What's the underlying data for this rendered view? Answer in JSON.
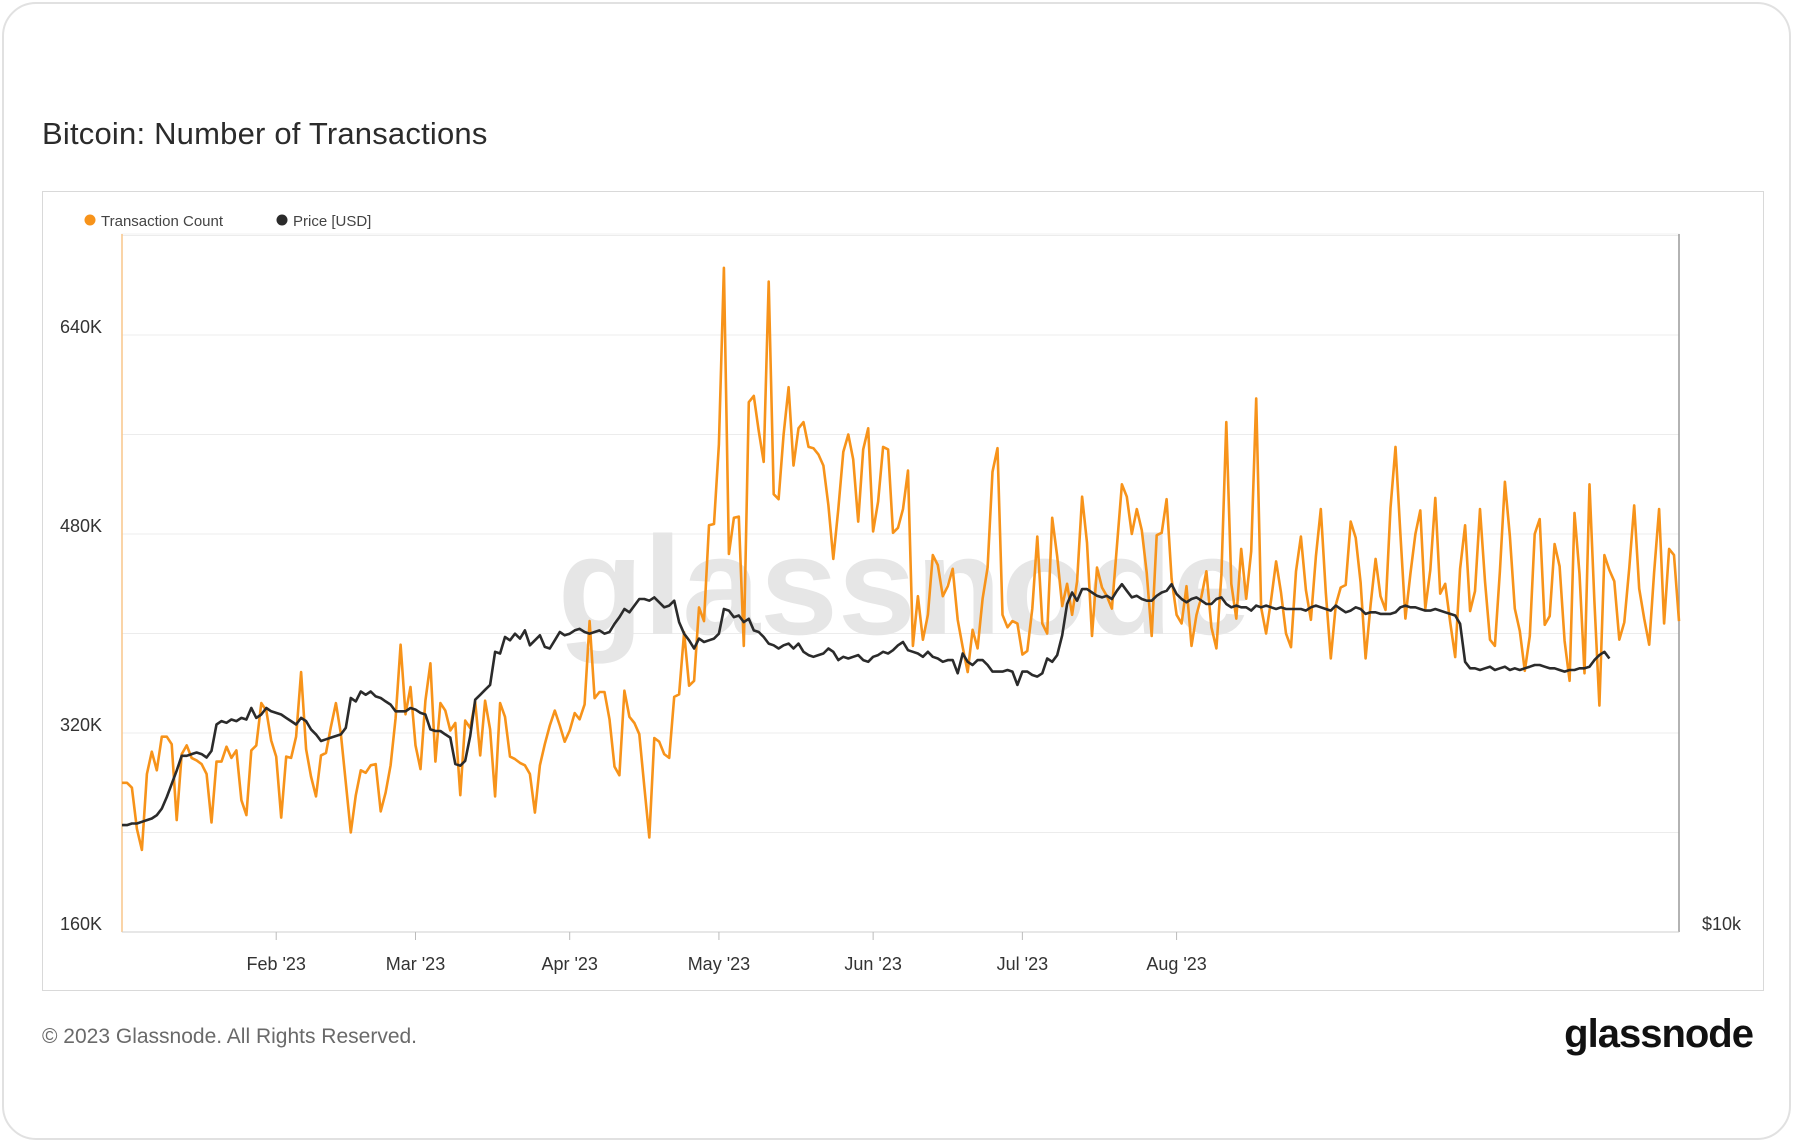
{
  "title": "Bitcoin: Number of Transactions",
  "footer": {
    "copyright": "© 2023 Glassnode. All Rights Reserved.",
    "logo_text": "glassnode"
  },
  "watermark": "glassnode",
  "colors": {
    "transactions": "#f7931a",
    "price": "#2b2b2b",
    "grid": "#ececec"
  },
  "chart_data": {
    "type": "line",
    "title": "Bitcoin: Number of Transactions",
    "x_ticks": [
      "Feb '23",
      "Mar '23",
      "Apr '23",
      "May '23",
      "Jun '23",
      "Jul '23",
      "Aug '23"
    ],
    "y_left": {
      "ticks": [
        "160K",
        "320K",
        "480K",
        "640K"
      ],
      "ylim": [
        160000,
        720000
      ]
    },
    "y_right": {
      "ticks": [
        "$10k"
      ]
    },
    "grid": true,
    "legend_placement": "top-left",
    "legend": [
      "Transaction Count",
      "Price [USD]"
    ],
    "series": [
      {
        "name": "Transaction Count",
        "axis": "left",
        "color": "#f7931a",
        "start": "2023-01-01",
        "values": [
          280000,
          280000,
          276000,
          243000,
          226000,
          287000,
          305000,
          290000,
          317000,
          317000,
          311000,
          250000,
          303000,
          310000,
          300000,
          298000,
          295000,
          287000,
          248000,
          297000,
          297000,
          309000,
          300000,
          306000,
          266000,
          254000,
          306000,
          310000,
          344000,
          338000,
          314000,
          301000,
          252000,
          301000,
          300000,
          317000,
          369000,
          307000,
          285000,
          269000,
          302000,
          304000,
          325000,
          344000,
          319000,
          280000,
          240000,
          270000,
          290000,
          288000,
          294000,
          295000,
          257000,
          272000,
          294000,
          332000,
          391000,
          335000,
          357000,
          310000,
          291000,
          346000,
          376000,
          297000,
          344000,
          338000,
          322000,
          328000,
          270000,
          330000,
          324000,
          345000,
          302000,
          346000,
          323000,
          269000,
          344000,
          333000,
          301000,
          299000,
          296000,
          294000,
          287000,
          256000,
          294000,
          311000,
          326000,
          338000,
          326000,
          313000,
          322000,
          336000,
          331000,
          343000,
          410000,
          348000,
          353000,
          353000,
          331000,
          293000,
          286000,
          354000,
          333000,
          328000,
          319000,
          277000,
          236000,
          316000,
          313000,
          303000,
          300000,
          349000,
          351000,
          401000,
          358000,
          362000,
          421000,
          410000,
          487000,
          488000,
          552000,
          694000,
          464000,
          493000,
          494000,
          390000,
          586000,
          591000,
          563000,
          538000,
          683000,
          512000,
          508000,
          560000,
          598000,
          535000,
          565000,
          570000,
          550000,
          549000,
          544000,
          535000,
          503000,
          460000,
          500000,
          546000,
          560000,
          540000,
          490000,
          548000,
          565000,
          482000,
          506000,
          550000,
          548000,
          481000,
          485000,
          500000,
          531000,
          390000,
          430000,
          395000,
          415000,
          463000,
          455000,
          430000,
          438000,
          452000,
          411000,
          389000,
          369000,
          403000,
          388000,
          428000,
          453000,
          530000,
          549000,
          415000,
          405000,
          410000,
          408000,
          383000,
          386000,
          420000,
          478000,
          408000,
          400000,
          493000,
          462000,
          422000,
          440000,
          415000,
          442000,
          510000,
          473000,
          398000,
          453000,
          437000,
          430000,
          420000,
          470000,
          520000,
          510000,
          480000,
          500000,
          483000,
          449000,
          398000,
          479000,
          481000,
          508000,
          444000,
          415000,
          408000,
          438000,
          390000,
          415000,
          430000,
          450000,
          405000,
          388000,
          447000,
          570000,
          440000,
          412000,
          468000,
          428000,
          466000,
          589000,
          421000,
          400000,
          427000,
          458000,
          433000,
          400000,
          389000,
          450000,
          478000,
          435000,
          411000,
          462000,
          500000,
          433000,
          380000,
          423000,
          437000,
          439000,
          490000,
          477000,
          441000,
          380000,
          423000,
          460000,
          430000,
          419000,
          501000,
          550000,
          480000,
          412000,
          448000,
          480000,
          499000,
          420000,
          451000,
          509000,
          432000,
          440000,
          409000,
          381000,
          452000,
          487000,
          418000,
          434000,
          500000,
          442000,
          395000,
          390000,
          450000,
          522000,
          478000,
          420000,
          402000,
          370000,
          398000,
          480000,
          492000,
          407000,
          414000,
          472000,
          454000,
          394000,
          362000,
          497000,
          448000,
          368000,
          520000,
          426000,
          342000,
          463000,
          451000,
          442000,
          395000,
          409000,
          453000,
          503000,
          436000,
          412000,
          391000,
          449000,
          500000,
          408000,
          468000,
          463000,
          410000
        ]
      },
      {
        "name": "Price [USD]",
        "axis": "right",
        "color": "#2b2b2b",
        "start": "2023-01-01",
        "values": [
          16600,
          16600,
          16700,
          16700,
          16800,
          16900,
          17000,
          17200,
          17600,
          18300,
          19100,
          19900,
          20800,
          20800,
          20900,
          21000,
          20900,
          20700,
          21100,
          22700,
          22900,
          22800,
          23000,
          22900,
          23100,
          23000,
          23700,
          23100,
          23300,
          23700,
          23500,
          23400,
          23300,
          23100,
          22900,
          22700,
          23100,
          22900,
          22400,
          22100,
          21700,
          21800,
          21900,
          22000,
          22100,
          22500,
          24300,
          24100,
          24700,
          24500,
          24700,
          24400,
          24300,
          24100,
          23900,
          23500,
          23500,
          23500,
          23700,
          23600,
          23400,
          23300,
          22400,
          22300,
          22300,
          22100,
          21900,
          20300,
          20200,
          20500,
          22000,
          24200,
          24500,
          24800,
          25100,
          27100,
          27000,
          28000,
          27800,
          28200,
          27900,
          28400,
          27500,
          27800,
          28100,
          27400,
          27300,
          27800,
          28300,
          28100,
          28200,
          28400,
          28500,
          28300,
          28200,
          28300,
          28400,
          28200,
          28300,
          28800,
          29200,
          29700,
          29500,
          29900,
          30300,
          30300,
          30200,
          30400,
          30100,
          29800,
          29900,
          30200,
          28900,
          28200,
          27800,
          27300,
          27900,
          27700,
          27800,
          27900,
          28200,
          29700,
          29600,
          29200,
          29300,
          28900,
          29100,
          28400,
          28300,
          28000,
          27600,
          27500,
          27300,
          27500,
          27600,
          27300,
          27600,
          27100,
          26900,
          26800,
          26900,
          27000,
          27300,
          27100,
          26600,
          26800,
          26700,
          26800,
          26900,
          26600,
          26500,
          26800,
          26900,
          27100,
          27000,
          27200,
          27500,
          27700,
          27200,
          27100,
          27000,
          26800,
          27100,
          26800,
          26700,
          26500,
          26600,
          26600,
          25800,
          27000,
          26500,
          26300,
          26600,
          26600,
          26300,
          25900,
          25900,
          25900,
          26000,
          25900,
          25100,
          25900,
          25900,
          25700,
          25600,
          25800,
          26700,
          26500,
          26900,
          28100,
          30000,
          30700,
          30200,
          30900,
          30900,
          30700,
          30500,
          30400,
          30500,
          30300,
          30800,
          31200,
          30800,
          30400,
          30500,
          30300,
          30200,
          30200,
          30500,
          30700,
          30800,
          31200,
          30600,
          30300,
          30100,
          30300,
          30400,
          30200,
          30000,
          30000,
          30300,
          30400,
          30000,
          29800,
          29900,
          29800,
          29800,
          29600,
          29900,
          29800,
          29900,
          29800,
          29700,
          29800,
          29700,
          29700,
          29700,
          29700,
          29600,
          29800,
          29900,
          29800,
          29700,
          29600,
          29900,
          29700,
          29500,
          29600,
          29800,
          29700,
          29400,
          29500,
          29500,
          29400,
          29400,
          29400,
          29500,
          29800,
          29900,
          29800,
          29800,
          29700,
          29600,
          29600,
          29700,
          29600,
          29500,
          29400,
          29300,
          28800,
          26500,
          26100,
          26100,
          26000,
          26100,
          26200,
          26000,
          26100,
          26200,
          26000,
          26100,
          26000,
          26100,
          26200,
          26300,
          26300,
          26200,
          26100,
          26100,
          26000,
          25900,
          26000,
          26000,
          26100,
          26100,
          26200,
          26600,
          26900,
          27100,
          26700
        ]
      }
    ]
  }
}
